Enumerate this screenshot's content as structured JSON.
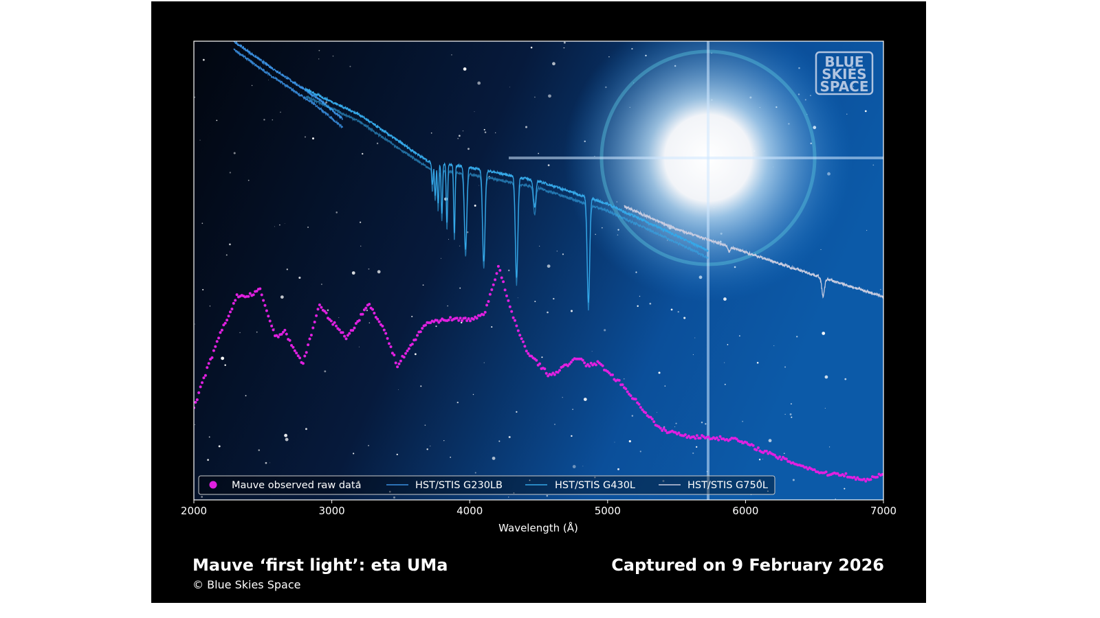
{
  "chart_data": {
    "type": "line",
    "xlabel": "Wavelength (Å)",
    "ylabel": "",
    "xlim": [
      2000,
      7000
    ],
    "ylim": [
      0,
      1
    ],
    "y_ticks_shown": false,
    "xticks": [
      "2000",
      "3000",
      "4000",
      "5000",
      "6000",
      "7000"
    ],
    "grid": false,
    "legend_placement": "bottom",
    "background": "starfield image with bright star",
    "series": [
      {
        "name": "Mauve observed raw data",
        "style": "scatter",
        "color": "#e020e0",
        "x": [
          2000,
          2090,
          2190,
          2315,
          2390,
          2480,
          2590,
          2660,
          2790,
          2910,
          2985,
          3110,
          3270,
          3380,
          3475,
          3685,
          3835,
          4035,
          4110,
          4210,
          4310,
          4410,
          4580,
          4795,
          4855,
          4930,
          5105,
          5380,
          5580,
          5930,
          6225,
          6575,
          6700,
          6850,
          7000
        ],
        "y": [
          0.2,
          0.28,
          0.36,
          0.446,
          0.443,
          0.458,
          0.356,
          0.366,
          0.296,
          0.424,
          0.394,
          0.353,
          0.428,
          0.371,
          0.293,
          0.386,
          0.394,
          0.394,
          0.409,
          0.509,
          0.401,
          0.326,
          0.27,
          0.311,
          0.292,
          0.299,
          0.251,
          0.154,
          0.139,
          0.132,
          0.094,
          0.057,
          0.057,
          0.042,
          0.057
        ]
      },
      {
        "name": "HST/STIS G230LB",
        "style": "line",
        "color": "#3a8fe0",
        "x": [
          2290,
          2500,
          2700,
          2900,
          3080
        ],
        "y": [
          1.0,
          0.955,
          0.915,
          0.875,
          0.83
        ],
        "absorption": []
      },
      {
        "name": "HST/STIS G430L",
        "style": "line",
        "color": "#35a8e8",
        "x": [
          2810,
          3200,
          3700,
          4000,
          4500,
          5000,
          5400,
          5730
        ],
        "y": [
          0.895,
          0.84,
          0.738,
          0.725,
          0.695,
          0.645,
          0.59,
          0.543
        ],
        "absorption": [
          [
            3730,
            0.05
          ],
          [
            3750,
            0.07
          ],
          [
            3771,
            0.09
          ],
          [
            3798,
            0.11
          ],
          [
            3835,
            0.13
          ],
          [
            3889,
            0.15
          ],
          [
            3970,
            0.18
          ],
          [
            4102,
            0.2
          ],
          [
            4340,
            0.22
          ],
          [
            4471,
            0.06
          ],
          [
            4861,
            0.23
          ]
        ]
      },
      {
        "name": "HST/STIS G750L",
        "style": "line",
        "color": "#c8cce0",
        "x": [
          5120,
          5500,
          6000,
          6500,
          7000
        ],
        "y": [
          0.64,
          0.59,
          0.54,
          0.49,
          0.443
        ],
        "absorption": [
          [
            5880,
            0.01
          ],
          [
            6563,
            0.04
          ]
        ]
      }
    ]
  },
  "logo_text": "BLUE SKIES SPACE",
  "footer": {
    "title": "Mauve ‘first light’: eta UMa",
    "captured": "Captured on 9 February 2026",
    "copyright": "© Blue Skies Space"
  }
}
